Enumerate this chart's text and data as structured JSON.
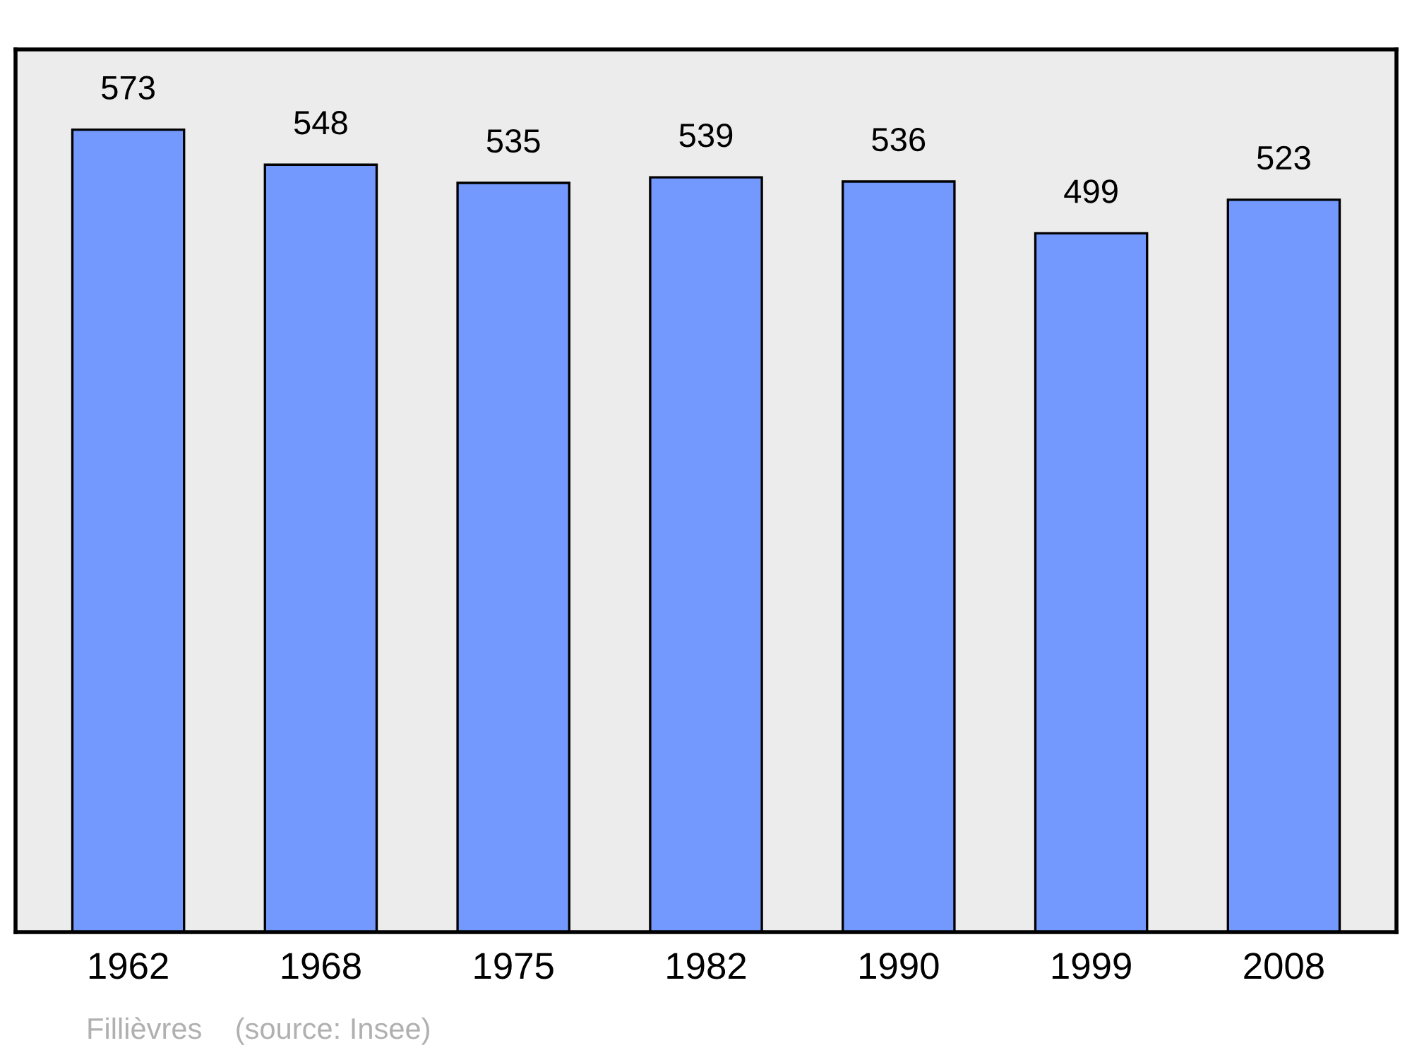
{
  "chart_data": {
    "type": "bar",
    "categories": [
      "1962",
      "1968",
      "1975",
      "1982",
      "1990",
      "1999",
      "2008"
    ],
    "values": [
      573,
      548,
      535,
      539,
      536,
      499,
      523
    ],
    "color": "#7399ff",
    "data_labels": true,
    "grid": false,
    "legend": false,
    "tick_labels": "x",
    "annotations": [
      "Fillièvres    (source: Insee)"
    ]
  }
}
